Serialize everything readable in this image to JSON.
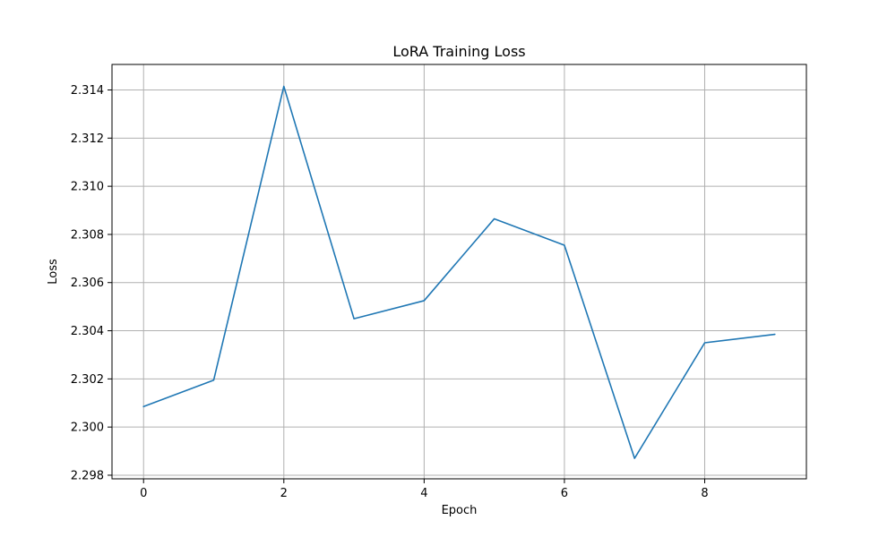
{
  "chart_data": {
    "type": "line",
    "title": "LoRA Training Loss",
    "xlabel": "Epoch",
    "ylabel": "Loss",
    "x": [
      0,
      1,
      2,
      3,
      4,
      5,
      6,
      7,
      8,
      9
    ],
    "series": [
      {
        "values": [
          2.30085,
          2.30195,
          2.31415,
          2.3045,
          2.30525,
          2.30865,
          2.30755,
          2.2987,
          2.3035,
          2.30385
        ],
        "color": "#1f77b4"
      }
    ],
    "xlim": [
      -0.45,
      9.45
    ],
    "ylim": [
      2.29785,
      2.31506
    ],
    "xticks": [
      0,
      2,
      4,
      6,
      8
    ],
    "xtick_labels": [
      "0",
      "2",
      "4",
      "6",
      "8"
    ],
    "yticks": [
      2.298,
      2.3,
      2.302,
      2.304,
      2.306,
      2.308,
      2.31,
      2.312,
      2.314
    ],
    "ytick_labels": [
      "2.298",
      "2.300",
      "2.302",
      "2.304",
      "2.306",
      "2.308",
      "2.310",
      "2.312",
      "2.314"
    ],
    "grid": true,
    "legend": "none"
  }
}
